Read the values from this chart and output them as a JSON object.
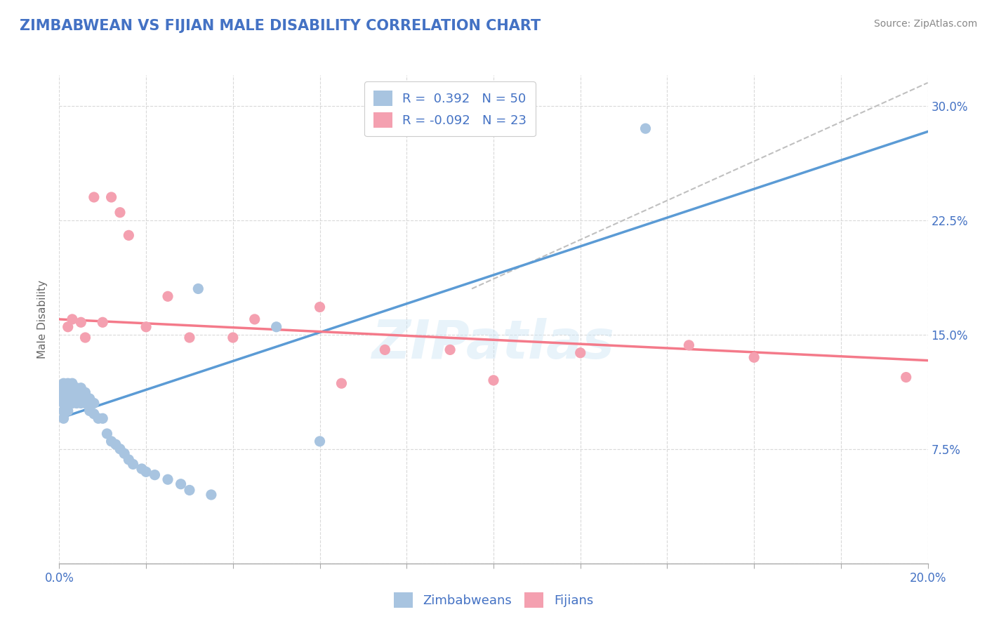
{
  "title": "ZIMBABWEAN VS FIJIAN MALE DISABILITY CORRELATION CHART",
  "source": "Source: ZipAtlas.com",
  "ylabel": "Male Disability",
  "xlim": [
    0.0,
    0.2
  ],
  "ylim": [
    0.0,
    0.32
  ],
  "x_ticks": [
    0.0,
    0.02,
    0.04,
    0.06,
    0.08,
    0.1,
    0.12,
    0.14,
    0.16,
    0.18,
    0.2
  ],
  "y_ticks": [
    0.0,
    0.075,
    0.15,
    0.225,
    0.3
  ],
  "y_tick_labels": [
    "",
    "7.5%",
    "15.0%",
    "22.5%",
    "30.0%"
  ],
  "x_tick_labels": [
    "0.0%",
    "",
    "",
    "",
    "",
    "",
    "",
    "",
    "",
    "",
    "20.0%"
  ],
  "zimbabwean_R": 0.392,
  "zimbabwean_N": 50,
  "fijian_R": -0.092,
  "fijian_N": 23,
  "zimbabwean_color": "#a8c4e0",
  "fijian_color": "#f4a0b0",
  "zimbabwean_line_color": "#5b9bd5",
  "fijian_line_color": "#f47a8a",
  "legend_text_color": "#4472c4",
  "title_color": "#4472c4",
  "zimbabwean_x": [
    0.001,
    0.001,
    0.001,
    0.001,
    0.001,
    0.001,
    0.001,
    0.001,
    0.002,
    0.002,
    0.002,
    0.002,
    0.002,
    0.002,
    0.003,
    0.003,
    0.003,
    0.003,
    0.004,
    0.004,
    0.004,
    0.005,
    0.005,
    0.005,
    0.006,
    0.006,
    0.007,
    0.007,
    0.008,
    0.008,
    0.009,
    0.01,
    0.011,
    0.012,
    0.013,
    0.014,
    0.015,
    0.016,
    0.017,
    0.019,
    0.02,
    0.022,
    0.025,
    0.028,
    0.03,
    0.032,
    0.035,
    0.05,
    0.06,
    0.135
  ],
  "zimbabwean_y": [
    0.118,
    0.115,
    0.112,
    0.11,
    0.108,
    0.105,
    0.1,
    0.095,
    0.118,
    0.115,
    0.112,
    0.108,
    0.105,
    0.1,
    0.118,
    0.115,
    0.11,
    0.105,
    0.115,
    0.11,
    0.105,
    0.115,
    0.11,
    0.105,
    0.112,
    0.105,
    0.108,
    0.1,
    0.105,
    0.098,
    0.095,
    0.095,
    0.085,
    0.08,
    0.078,
    0.075,
    0.072,
    0.068,
    0.065,
    0.062,
    0.06,
    0.058,
    0.055,
    0.052,
    0.048,
    0.18,
    0.045,
    0.155,
    0.08,
    0.285
  ],
  "fijian_x": [
    0.002,
    0.003,
    0.005,
    0.006,
    0.008,
    0.01,
    0.012,
    0.014,
    0.016,
    0.02,
    0.025,
    0.03,
    0.04,
    0.045,
    0.06,
    0.065,
    0.075,
    0.09,
    0.1,
    0.12,
    0.145,
    0.16,
    0.195
  ],
  "fijian_y": [
    0.155,
    0.16,
    0.158,
    0.148,
    0.24,
    0.158,
    0.24,
    0.23,
    0.215,
    0.155,
    0.175,
    0.148,
    0.148,
    0.16,
    0.168,
    0.118,
    0.14,
    0.14,
    0.12,
    0.138,
    0.143,
    0.135,
    0.122
  ],
  "diag_line_x": [
    0.095,
    0.2
  ],
  "diag_line_y": [
    0.18,
    0.315
  ]
}
